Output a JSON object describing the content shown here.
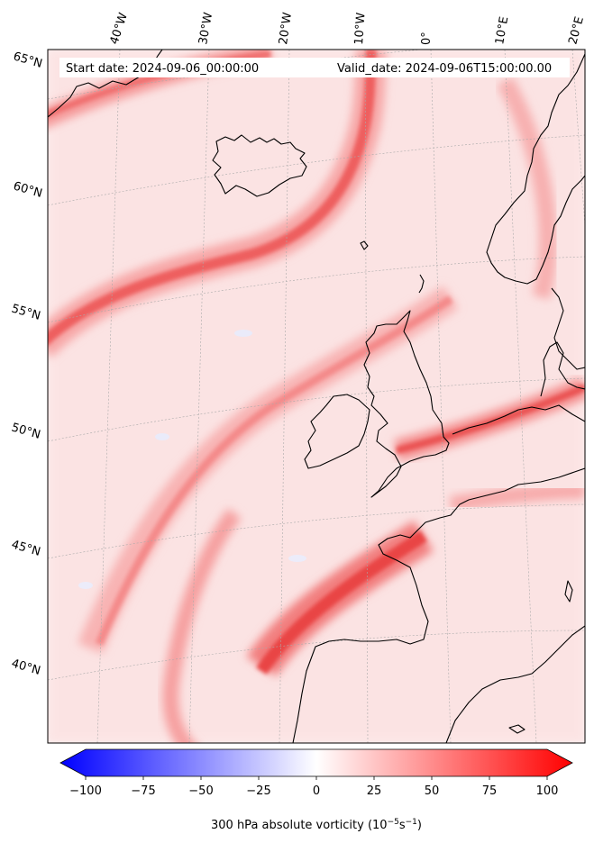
{
  "header": {
    "start_label": "Start date: 2024-09-06_00:00:00",
    "valid_label": "Valid_date: 2024-09-06T15:00:00.00"
  },
  "map": {
    "projection": "conic",
    "field": "300 hPa absolute vorticity",
    "lon_labels": [
      "40°W",
      "30°W",
      "20°W",
      "10°W",
      "0°",
      "10°E",
      "20°E"
    ],
    "lat_labels": [
      "65°N",
      "60°N",
      "55°N",
      "50°N",
      "45°N",
      "40°N"
    ],
    "gridlines": true,
    "coastline_color": "#000000"
  },
  "colorbar": {
    "ticks": [
      "−100",
      "−75",
      "−50",
      "−25",
      "0",
      "25",
      "50",
      "75",
      "100"
    ],
    "tick_values": [
      -100,
      -75,
      -50,
      -25,
      0,
      25,
      50,
      75,
      100
    ],
    "range": [
      -100,
      100
    ],
    "label": "300 hPa absolute vorticity (10⁻⁵s⁻¹)",
    "label_main": "300 hPa absolute vorticity (10",
    "label_exp1": "−5",
    "label_mid": "s",
    "label_exp2": "−1",
    "label_end": ")",
    "cmap": "bwr",
    "color_min": "#0000ff",
    "color_mid": "#ffffff",
    "color_max": "#ff0000",
    "extend": "both"
  }
}
